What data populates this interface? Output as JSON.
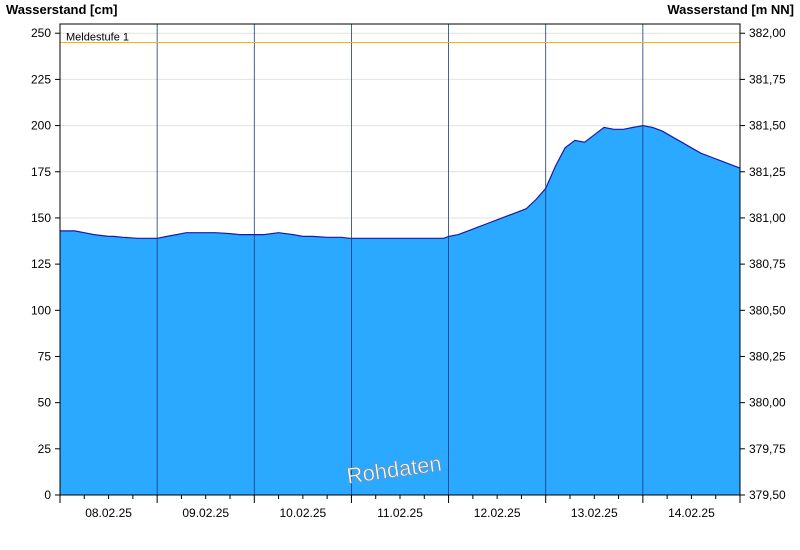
{
  "chart_data": {
    "type": "area",
    "ylabel_left": "Wasserstand [cm]",
    "ylabel_right": "Wasserstand [m NN]",
    "ylim": [
      0,
      255
    ],
    "yticks_left": [
      0,
      25,
      50,
      75,
      100,
      125,
      150,
      175,
      200,
      225,
      250
    ],
    "yticks_right": [
      "379,50",
      "379,75",
      "380,00",
      "380,25",
      "380,50",
      "380,75",
      "381,00",
      "381,25",
      "381,50",
      "381,75",
      "382,00"
    ],
    "x_dates": [
      "08.02.25",
      "09.02.25",
      "10.02.25",
      "11.02.25",
      "12.02.25",
      "13.02.25",
      "14.02.25"
    ],
    "xlim": [
      0,
      7
    ],
    "fill_color": "#2ba8ff",
    "line_color": "#1a1aa8",
    "grid": true,
    "threshold": {
      "label": "Meldestufe 1",
      "value": 245,
      "color": "#f5b800"
    },
    "watermark": "Rohdaten",
    "series": [
      {
        "x": [
          0,
          0.15,
          0.25,
          0.35,
          0.5,
          0.55,
          0.65,
          0.8,
          0.95,
          1.0,
          1.1,
          1.2,
          1.3,
          1.4,
          1.6,
          1.75,
          1.85,
          1.95,
          2.0,
          2.1,
          2.25,
          2.4,
          2.5,
          2.6,
          2.75,
          2.9,
          2.98,
          3.0,
          3.1,
          3.3,
          3.5,
          3.7,
          3.85,
          3.95,
          4.0,
          4.1,
          4.2,
          4.3,
          4.4,
          4.5,
          4.6,
          4.7,
          4.8,
          4.9,
          5.0,
          5.05,
          5.1,
          5.2,
          5.3,
          5.4,
          5.5,
          5.6,
          5.7,
          5.8,
          5.9,
          6.0,
          6.1,
          6.2,
          6.3,
          6.4,
          6.5,
          6.6,
          6.7,
          6.8,
          6.9,
          7.0
        ],
        "y": [
          143,
          143,
          142,
          141,
          140,
          140,
          139.5,
          139,
          139,
          139,
          140,
          141,
          142,
          142,
          142,
          141.5,
          141,
          141,
          141,
          141,
          142,
          141,
          140,
          140,
          139.5,
          139.5,
          139,
          139,
          139,
          139,
          139,
          139,
          139,
          139,
          140,
          141,
          143,
          145,
          147,
          149,
          151,
          153,
          155,
          160,
          166,
          172,
          178,
          188,
          192,
          191,
          195,
          199,
          198,
          198,
          199,
          200,
          199,
          197,
          194,
          191,
          188,
          185,
          183,
          181,
          179,
          177
        ]
      }
    ]
  }
}
